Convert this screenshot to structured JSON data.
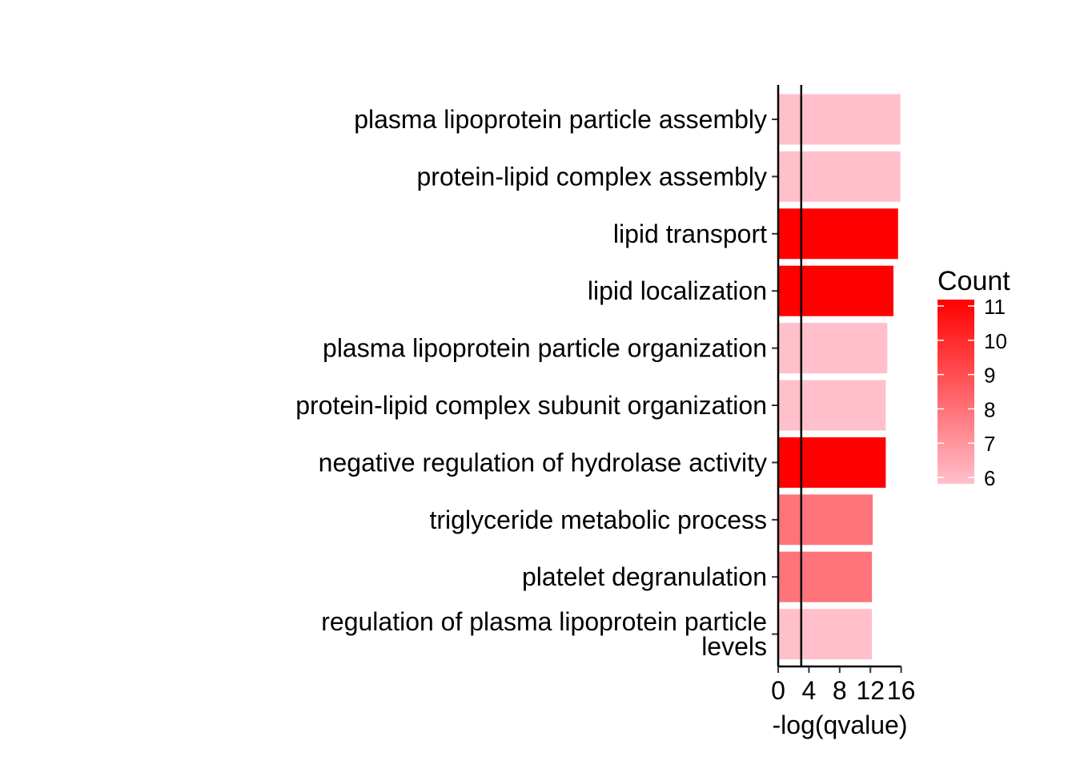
{
  "chart_data": {
    "type": "bar",
    "orientation": "horizontal",
    "categories": [
      "plasma lipoprotein particle assembly",
      "protein-lipid complex assembly",
      "lipid transport",
      "lipid localization",
      "plasma lipoprotein particle organization",
      "protein-lipid complex subunit organization",
      "negative regulation of hydrolase activity",
      "triglyceride metabolic process",
      "platelet degranulation",
      "regulation of plasma lipoprotein particle levels"
    ],
    "category_lines": [
      [
        "plasma lipoprotein particle assembly"
      ],
      [
        "protein-lipid complex assembly"
      ],
      [
        "lipid transport"
      ],
      [
        "lipid localization"
      ],
      [
        "plasma lipoprotein particle organization"
      ],
      [
        "protein-lipid complex subunit organization"
      ],
      [
        "negative regulation of hydrolase activity"
      ],
      [
        "triglyceride metabolic process"
      ],
      [
        "platelet degranulation"
      ],
      [
        "regulation of plasma lipoprotein particle",
        "levels"
      ]
    ],
    "values": [
      15.9,
      15.9,
      15.6,
      15.0,
      14.2,
      14.0,
      14.0,
      12.3,
      12.2,
      12.2
    ],
    "counts": [
      6,
      6,
      11,
      11,
      6,
      6,
      11,
      8,
      8,
      6
    ],
    "xlabel": "-log(qvalue)",
    "ylabel": "",
    "xlim": [
      0,
      16
    ],
    "xticks": [
      "0",
      "4",
      "8",
      "12",
      "16"
    ],
    "reference_line_x": 3,
    "grid": false,
    "legend": {
      "title": "Count",
      "placement": "right",
      "type": "colorbar",
      "min": 6,
      "max": 11,
      "labels": [
        "11",
        "10",
        "9",
        "8",
        "7",
        "6"
      ],
      "low_color": "#FFC0CB",
      "high_color": "#FF0000"
    }
  }
}
